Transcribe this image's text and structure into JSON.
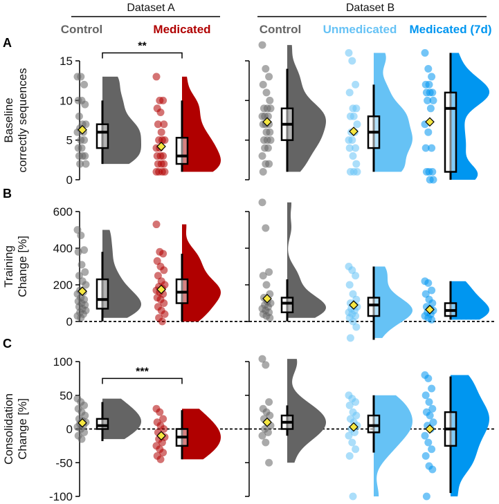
{
  "chart_data": {
    "type": "raincloud",
    "datasets": [
      {
        "label": "Dataset A",
        "groups": [
          "Control",
          "Medicated"
        ]
      },
      {
        "label": "Dataset B",
        "groups": [
          "Control",
          "Unmedicated",
          "Medicated (7d)"
        ]
      }
    ],
    "groups": [
      {
        "name": "Control",
        "dataset": "Dataset A",
        "color": "#646464"
      },
      {
        "name": "Medicated",
        "dataset": "Dataset A",
        "color": "#b00000"
      },
      {
        "name": "Control",
        "dataset": "Dataset B",
        "color": "#646464"
      },
      {
        "name": "Unmedicated",
        "dataset": "Dataset B",
        "color": "#66c2f5"
      },
      {
        "name": "Medicated (7d)",
        "dataset": "Dataset B",
        "color": "#0096f0"
      }
    ],
    "mean_marker_color": "#f5e642",
    "panels": [
      {
        "letter": "A",
        "ylabel": [
          "Baseline",
          "correctly sequences"
        ],
        "ylim": [
          0,
          15
        ],
        "ticks": [
          0,
          5,
          10,
          15
        ],
        "zero_line": false,
        "significance": [
          {
            "label": "**",
            "between": [
              0,
              1
            ],
            "y": 16
          }
        ],
        "series": [
          {
            "points": [
              13,
              13,
              12,
              10,
              10,
              9.5,
              8,
              7,
              7,
              6.5,
              6,
              6,
              5,
              5,
              4,
              4,
              3,
              3,
              3,
              2,
              2
            ],
            "box": [
              2,
              4,
              6,
              7,
              10
            ],
            "mean": 6.3
          },
          {
            "points": [
              13,
              10,
              10,
              9,
              8.5,
              7,
              7,
              6,
              5,
              5,
              5,
              4,
              4,
              3,
              3,
              3,
              2,
              2,
              2,
              1,
              1,
              1,
              1
            ],
            "box": [
              1,
              2,
              3,
              5.3,
              10
            ],
            "mean": 4.2
          },
          {
            "points": [
              17,
              14,
              13,
              12,
              11,
              10,
              9,
              9,
              9,
              8,
              8,
              8,
              7,
              7,
              7,
              6,
              6,
              5,
              5,
              5,
              4,
              4,
              3,
              2,
              2,
              1
            ],
            "box": [
              1,
              5,
              7,
              9,
              14
            ],
            "mean": 7.3
          },
          {
            "points": [
              16,
              15,
              12,
              11,
              9,
              9,
              8,
              8,
              7,
              6,
              6,
              5,
              5,
              4,
              4,
              3,
              2,
              1,
              1,
              1
            ],
            "box": [
              1,
              4,
              6,
              8,
              12
            ],
            "mean": 6.1
          },
          {
            "points": [
              16,
              14,
              13,
              12,
              12,
              11,
              11,
              11,
              10,
              10,
              9,
              7,
              6,
              4,
              4,
              1,
              1,
              1,
              0,
              0
            ],
            "box": [
              0,
              1,
              9,
              11,
              16
            ],
            "mean": 7.3
          }
        ]
      },
      {
        "letter": "B",
        "ylabel": [
          "Training",
          "Change [%]"
        ],
        "ylim": [
          0,
          600
        ],
        "ticks": [
          0,
          200,
          400,
          600
        ],
        "zero_line": true,
        "significance": [],
        "series": [
          {
            "points": [
              500,
              470,
              390,
              380,
              310,
              270,
              250,
              220,
              200,
              170,
              160,
              150,
              130,
              120,
              110,
              100,
              90,
              80,
              70,
              60,
              50,
              40,
              30,
              20
            ],
            "box": [
              0,
              70,
              120,
              230,
              380
            ],
            "mean": 165
          },
          {
            "points": [
              530,
              380,
              370,
              330,
              300,
              280,
              250,
              220,
              200,
              190,
              180,
              170,
              160,
              150,
              130,
              120,
              100,
              80,
              60,
              40,
              20,
              0
            ],
            "box": [
              0,
              100,
              160,
              230,
              370
            ],
            "mean": 175
          },
          {
            "points": [
              650,
              510,
              270,
              250,
              200,
              150,
              130,
              110,
              100,
              90,
              80,
              70,
              60,
              50,
              40,
              30,
              20
            ],
            "box": [
              0,
              50,
              100,
              130,
              230
            ],
            "mean": 125
          },
          {
            "points": [
              300,
              280,
              250,
              200,
              150,
              120,
              100,
              90,
              80,
              70,
              60,
              50,
              40,
              30,
              20,
              0,
              -30,
              -90
            ],
            "box": [
              -100,
              30,
              90,
              130,
              300
            ],
            "mean": 90
          },
          {
            "points": [
              220,
              210,
              170,
              150,
              120,
              100,
              80,
              70,
              60,
              50,
              40,
              30,
              20,
              10
            ],
            "box": [
              10,
              30,
              60,
              100,
              220
            ],
            "mean": 65
          }
        ]
      },
      {
        "letter": "C",
        "ylabel": [
          "Consolidation",
          "Change [%]"
        ],
        "ylim": [
          -100,
          100
        ],
        "ticks": [
          -100,
          -50,
          0,
          50,
          100
        ],
        "zero_line": true,
        "significance": [
          {
            "label": "***",
            "between": [
              0,
              1
            ],
            "y": 75
          }
        ],
        "series": [
          {
            "points": [
              45,
              40,
              35,
              30,
              25,
              20,
              15,
              12,
              10,
              8,
              5,
              3,
              0,
              -5,
              -10,
              -15
            ],
            "box": [
              -18,
              0,
              5,
              15,
              40
            ],
            "mean": 9
          },
          {
            "points": [
              30,
              25,
              15,
              10,
              5,
              0,
              -5,
              -10,
              -12,
              -15,
              -20,
              -25,
              -30,
              -35,
              -40,
              -45
            ],
            "box": [
              -45,
              -25,
              -12,
              0,
              28
            ],
            "mean": -10
          },
          {
            "points": [
              104,
              95,
              40,
              30,
              25,
              20,
              15,
              10,
              5,
              0,
              -5,
              -10,
              -20,
              -50
            ],
            "box": [
              -10,
              0,
              10,
              20,
              35
            ],
            "mean": 10
          },
          {
            "points": [
              50,
              45,
              40,
              35,
              25,
              20,
              15,
              10,
              5,
              0,
              -5,
              -10,
              -20,
              -30,
              -40,
              -100
            ],
            "box": [
              -35,
              -5,
              5,
              20,
              50
            ],
            "mean": 3
          },
          {
            "points": [
              80,
              75,
              60,
              50,
              40,
              30,
              25,
              20,
              10,
              5,
              0,
              -10,
              -20,
              -30,
              -40,
              -55,
              -60,
              -100
            ],
            "box": [
              -95,
              -25,
              0,
              25,
              78
            ],
            "mean": 0
          }
        ]
      }
    ]
  }
}
